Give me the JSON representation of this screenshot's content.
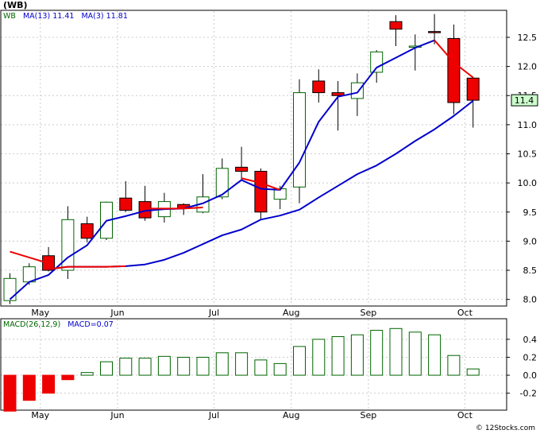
{
  "title": "(WB)",
  "price_legend": {
    "ticker": "WB",
    "ma13_label": "MA(13)",
    "ma13_value": "11.41",
    "ma3_label": "MA(3)",
    "ma3_value": "11.81"
  },
  "macd_legend": {
    "params": "MACD(26,12,9)",
    "value_label": "MACD=0.07"
  },
  "last_price_tag": "11.4",
  "credit": "© 12Stocks.com",
  "colors": {
    "up_candle_fill": "#ffffff",
    "up_candle_stroke": "#006400",
    "down_candle_fill": "#ee0000",
    "ma13_line": "#0000cc",
    "ma3_line": "#ee0000",
    "macd_negative": "#ee0000",
    "macd_positive_stroke": "#006400",
    "price_tag_bg": "#ccffcc"
  },
  "chart_data": [
    {
      "type": "candlestick",
      "title": "(WB)",
      "ylim": [
        7.9,
        12.95
      ],
      "y_ticks": [
        8.0,
        8.5,
        9.0,
        9.5,
        10.0,
        10.5,
        11.0,
        11.5,
        12.0,
        12.5
      ],
      "y_tick_labels": [
        "8.0",
        "8.5",
        "9.0",
        "9.5",
        "10.0",
        "10.5",
        "11.0",
        "11.5",
        "12.0",
        "12.5"
      ],
      "x_tick_labels": [
        "May",
        "Jun",
        "Jul",
        "Aug",
        "Sep",
        "Oct"
      ],
      "x_tick_index": [
        1,
        5,
        10,
        14,
        18,
        23
      ],
      "candles": [
        {
          "o": 7.98,
          "h": 8.45,
          "l": 7.92,
          "c": 8.36
        },
        {
          "o": 8.3,
          "h": 8.62,
          "l": 8.25,
          "c": 8.56
        },
        {
          "o": 8.75,
          "h": 8.9,
          "l": 8.48,
          "c": 8.5
        },
        {
          "o": 8.5,
          "h": 9.6,
          "l": 8.35,
          "c": 9.37
        },
        {
          "o": 9.3,
          "h": 9.42,
          "l": 8.98,
          "c": 9.05
        },
        {
          "o": 9.05,
          "h": 9.68,
          "l": 9.02,
          "c": 9.67
        },
        {
          "o": 9.74,
          "h": 10.03,
          "l": 9.5,
          "c": 9.53
        },
        {
          "o": 9.68,
          "h": 9.95,
          "l": 9.35,
          "c": 9.4
        },
        {
          "o": 9.42,
          "h": 9.83,
          "l": 9.32,
          "c": 9.68
        },
        {
          "o": 9.63,
          "h": 9.65,
          "l": 9.45,
          "c": 9.56
        },
        {
          "o": 9.5,
          "h": 10.15,
          "l": 9.48,
          "c": 9.76
        },
        {
          "o": 9.76,
          "h": 10.42,
          "l": 9.72,
          "c": 10.25
        },
        {
          "o": 10.27,
          "h": 10.62,
          "l": 10.05,
          "c": 10.2
        },
        {
          "o": 10.2,
          "h": 10.25,
          "l": 9.38,
          "c": 9.5
        },
        {
          "o": 9.72,
          "h": 9.95,
          "l": 9.55,
          "c": 9.9
        },
        {
          "o": 9.93,
          "h": 11.78,
          "l": 9.65,
          "c": 11.55
        },
        {
          "o": 11.75,
          "h": 11.95,
          "l": 11.38,
          "c": 11.55
        },
        {
          "o": 11.55,
          "h": 11.75,
          "l": 10.9,
          "c": 11.5
        },
        {
          "o": 11.45,
          "h": 11.88,
          "l": 11.15,
          "c": 11.72
        },
        {
          "o": 11.9,
          "h": 12.28,
          "l": 11.72,
          "c": 12.25
        },
        {
          "o": 12.77,
          "h": 12.88,
          "l": 12.35,
          "c": 12.64
        },
        {
          "o": 12.35,
          "h": 12.55,
          "l": 11.93,
          "c": 12.35
        },
        {
          "o": 12.6,
          "h": 12.9,
          "l": 12.38,
          "c": 12.58
        },
        {
          "o": 12.48,
          "h": 12.72,
          "l": 11.18,
          "c": 11.38
        },
        {
          "o": 11.8,
          "h": 11.82,
          "l": 10.95,
          "c": 11.42
        }
      ],
      "series": [
        {
          "name": "MA(13)",
          "values": [
            8.0,
            8.3,
            8.42,
            8.72,
            8.93,
            9.35,
            9.43,
            9.52,
            9.55,
            9.56,
            9.65,
            9.8,
            10.05,
            9.9,
            9.88,
            10.35,
            11.05,
            11.48,
            11.55,
            11.98,
            12.15,
            12.32,
            12.45,
            null,
            null
          ]
        },
        {
          "name": "MA(13)",
          "values": [
            null,
            null,
            8.52,
            8.56,
            8.56,
            8.56,
            8.57,
            8.6,
            8.68,
            8.8,
            8.95,
            9.1,
            9.2,
            9.37,
            9.44,
            9.54,
            9.75,
            9.95,
            10.15,
            10.3,
            10.5,
            10.72,
            10.92,
            11.15,
            11.41
          ]
        },
        {
          "name": "MA(3)",
          "values": [
            8.82,
            8.72,
            8.62,
            null,
            null,
            null,
            null,
            null,
            null,
            null,
            null,
            null,
            null,
            null,
            null,
            null,
            null,
            null,
            null,
            null,
            null,
            null,
            12.45,
            12.07,
            11.81
          ]
        },
        {
          "name": "MA(3)",
          "values": [
            null,
            null,
            8.52,
            8.56,
            8.56,
            8.56,
            8.57,
            null,
            null,
            null,
            null,
            null,
            null,
            null,
            null,
            null,
            null,
            null,
            null,
            null,
            null,
            null,
            null,
            null,
            null
          ]
        },
        {
          "name": "MA(3)",
          "values": [
            null,
            null,
            null,
            null,
            null,
            null,
            null,
            9.56,
            9.56,
            9.56,
            9.58,
            null,
            10.08,
            10.0,
            9.88,
            null,
            null,
            null,
            null,
            null,
            null,
            null,
            null,
            null,
            null
          ]
        }
      ]
    },
    {
      "type": "bar",
      "title": "MACD(26,12,9)",
      "ylim": [
        -0.38,
        0.62
      ],
      "y_ticks": [
        -0.2,
        0.0,
        0.2,
        0.4
      ],
      "y_tick_labels": [
        "-0.2",
        "0.0",
        "0.2",
        "0.4"
      ],
      "x_tick_labels": [
        "May",
        "Jun",
        "Jul",
        "Aug",
        "Sep",
        "Oct"
      ],
      "values": [
        -0.4,
        -0.28,
        -0.2,
        -0.05,
        0.03,
        0.15,
        0.19,
        0.19,
        0.21,
        0.2,
        0.2,
        0.25,
        0.25,
        0.17,
        0.13,
        0.32,
        0.4,
        0.43,
        0.45,
        0.5,
        0.52,
        0.48,
        0.45,
        0.22,
        0.07
      ]
    }
  ]
}
